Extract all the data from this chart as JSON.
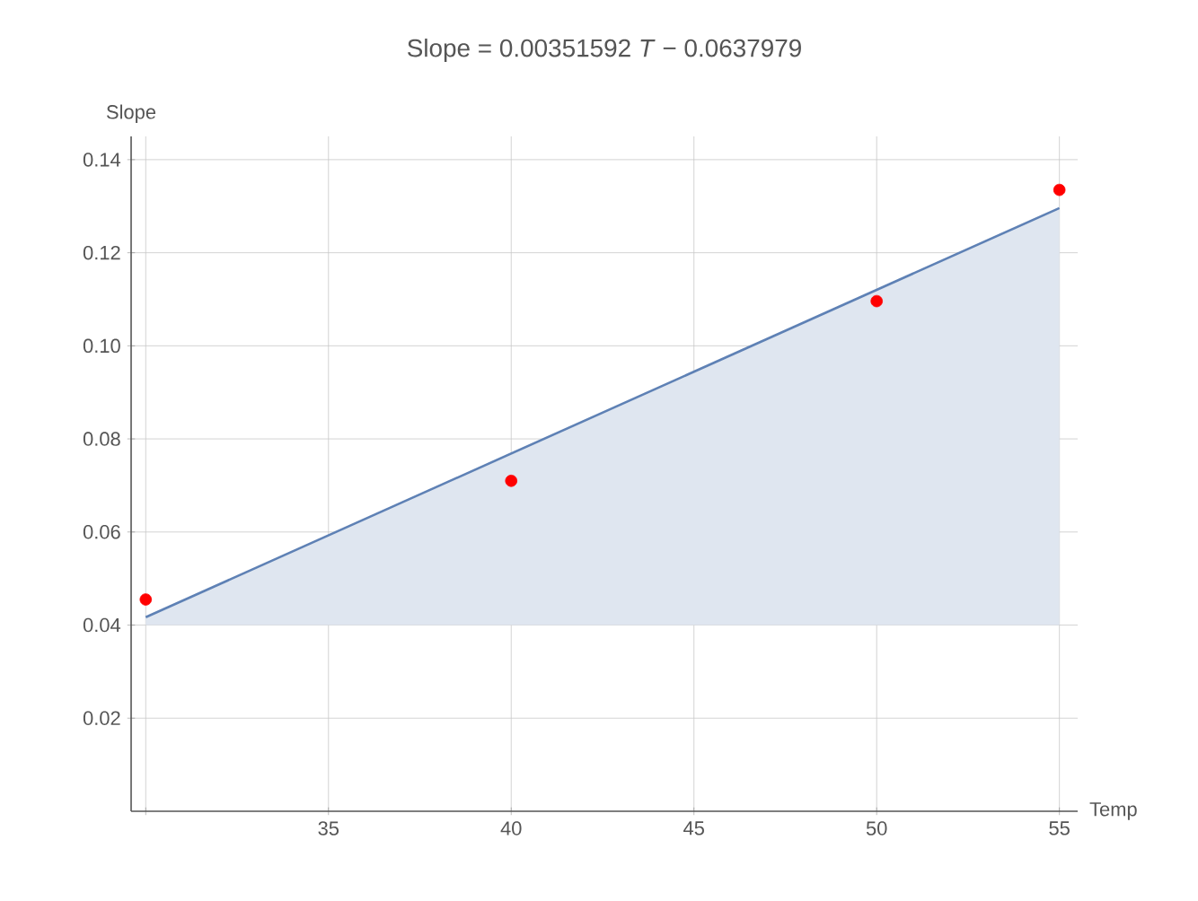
{
  "chart_data": {
    "type": "scatter",
    "title": "Slope = 0.00351592 *T* − 0.0637979",
    "xlabel": "Temp",
    "ylabel": "Slope",
    "xlim": [
      29.6,
      55.5
    ],
    "ylim": [
      0,
      0.145
    ],
    "xticks": [
      {
        "value": 30,
        "label": null
      },
      35,
      40,
      45,
      50,
      55
    ],
    "yticks": [
      0.02,
      0.04,
      0.06,
      0.08,
      {
        "value": 0.1,
        "label": "0.10"
      },
      0.12,
      0.14
    ],
    "grid": true,
    "series": [
      {
        "type": "line",
        "color": "#5e81b5",
        "x": [
          30,
          55
        ],
        "values": [
          0.0417,
          0.1296
        ],
        "lower": [
          0.04,
          0.04
        ],
        "upper": [
          0.0417,
          0.1296
        ],
        "line_style": "solid",
        "marker": "none"
      },
      {
        "color": "#ff0000",
        "x": [
          30,
          40,
          50,
          55
        ],
        "values": [
          0.0455,
          0.071,
          0.1096,
          0.1335
        ],
        "marker": "circle"
      }
    ]
  }
}
